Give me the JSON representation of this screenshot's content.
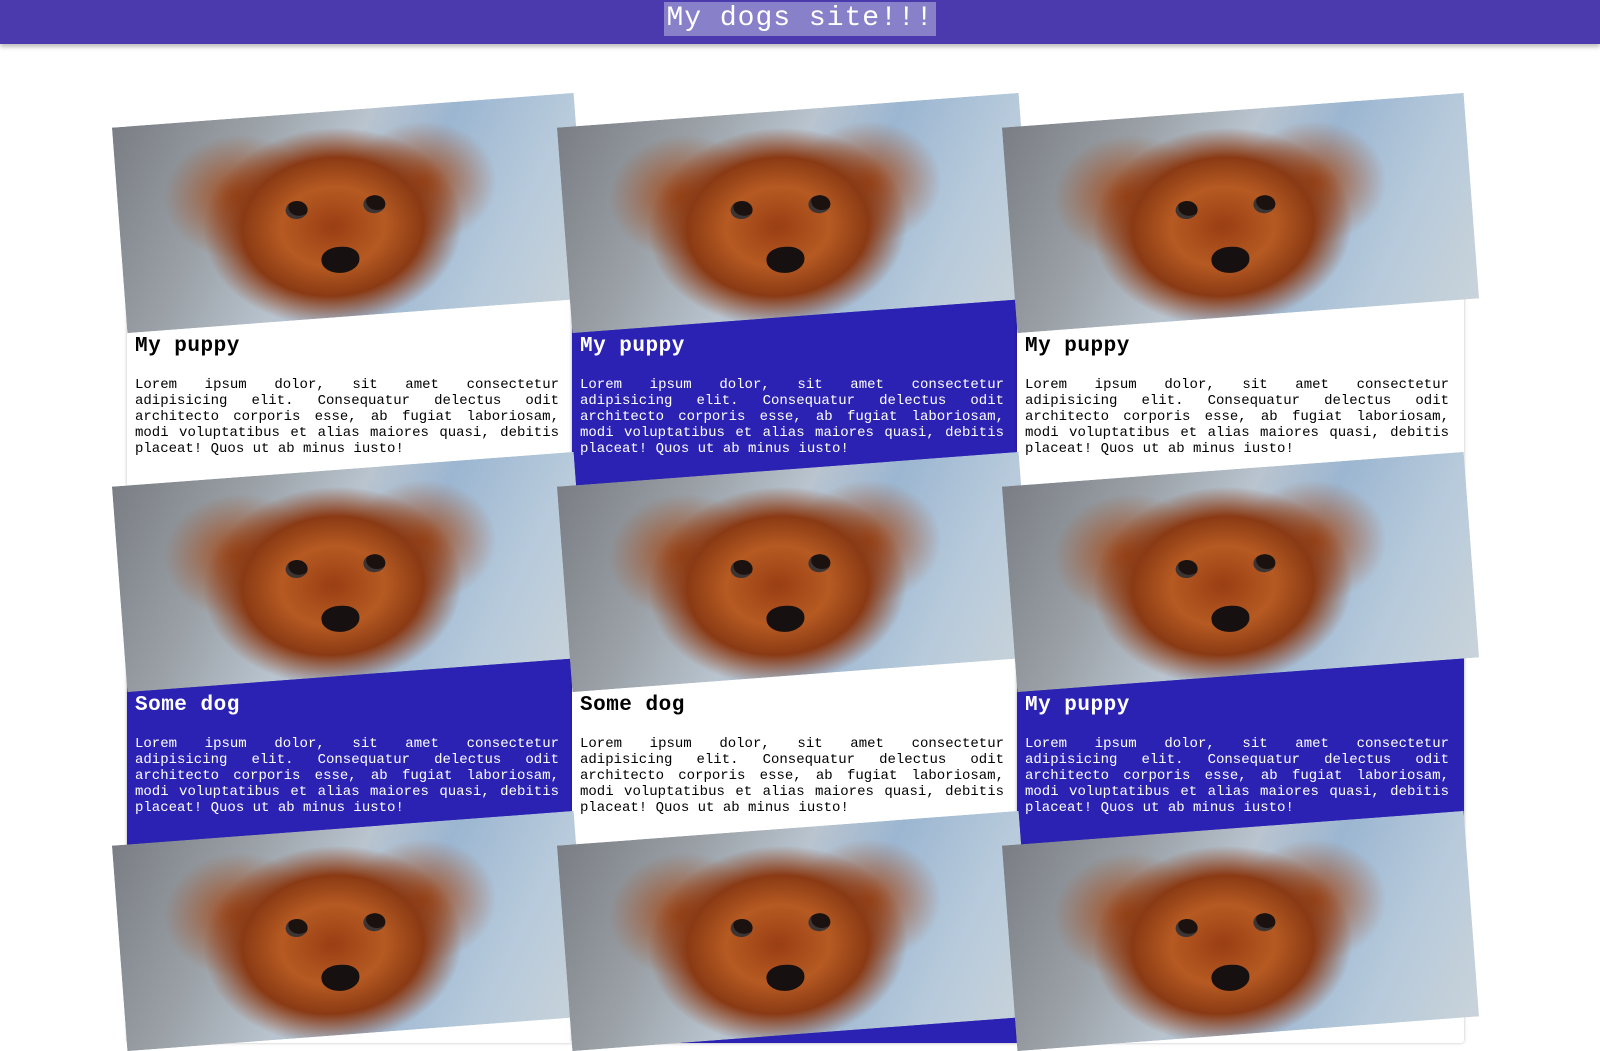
{
  "header": {
    "title": "My dogs site!!!"
  },
  "colors": {
    "header_bg": "#4a3aad",
    "card_dark": "#2b22b3",
    "card_light": "#ffffff"
  },
  "cards": [
    {
      "title": "My puppy",
      "body": "Lorem ipsum dolor, sit amet consectetur adipisicing elit. Consequatur delectus odit architecto corporis esse, ab fugiat laboriosam, modi voluptatibus et alias maiores quasi, debitis placeat! Quos ut ab minus iusto!",
      "theme": "light",
      "image": "puppy-photo"
    },
    {
      "title": "My puppy",
      "body": "Lorem ipsum dolor, sit amet consectetur adipisicing elit. Consequatur delectus odit architecto corporis esse, ab fugiat laboriosam, modi voluptatibus et alias maiores quasi, debitis placeat! Quos ut ab minus iusto!",
      "theme": "dark",
      "image": "puppy-photo"
    },
    {
      "title": "My puppy",
      "body": "Lorem ipsum dolor, sit amet consectetur adipisicing elit. Consequatur delectus odit architecto corporis esse, ab fugiat laboriosam, modi voluptatibus et alias maiores quasi, debitis placeat! Quos ut ab minus iusto!",
      "theme": "light",
      "image": "puppy-photo"
    },
    {
      "title": "Some dog",
      "body": "Lorem ipsum dolor, sit amet consectetur adipisicing elit. Consequatur delectus odit architecto corporis esse, ab fugiat laboriosam, modi voluptatibus et alias maiores quasi, debitis placeat! Quos ut ab minus iusto!",
      "theme": "dark",
      "image": "puppy-photo"
    },
    {
      "title": "Some dog",
      "body": "Lorem ipsum dolor, sit amet consectetur adipisicing elit. Consequatur delectus odit architecto corporis esse, ab fugiat laboriosam, modi voluptatibus et alias maiores quasi, debitis placeat! Quos ut ab minus iusto!",
      "theme": "light",
      "image": "puppy-photo"
    },
    {
      "title": "My puppy",
      "body": "Lorem ipsum dolor, sit amet consectetur adipisicing elit. Consequatur delectus odit architecto corporis esse, ab fugiat laboriosam, modi voluptatibus et alias maiores quasi, debitis placeat! Quos ut ab minus iusto!",
      "theme": "dark",
      "image": "puppy-photo"
    },
    {
      "title": "",
      "body": "",
      "theme": "light",
      "image": "puppy-photo"
    },
    {
      "title": "",
      "body": "",
      "theme": "dark",
      "image": "puppy-photo"
    },
    {
      "title": "",
      "body": "",
      "theme": "light",
      "image": "puppy-photo"
    }
  ]
}
